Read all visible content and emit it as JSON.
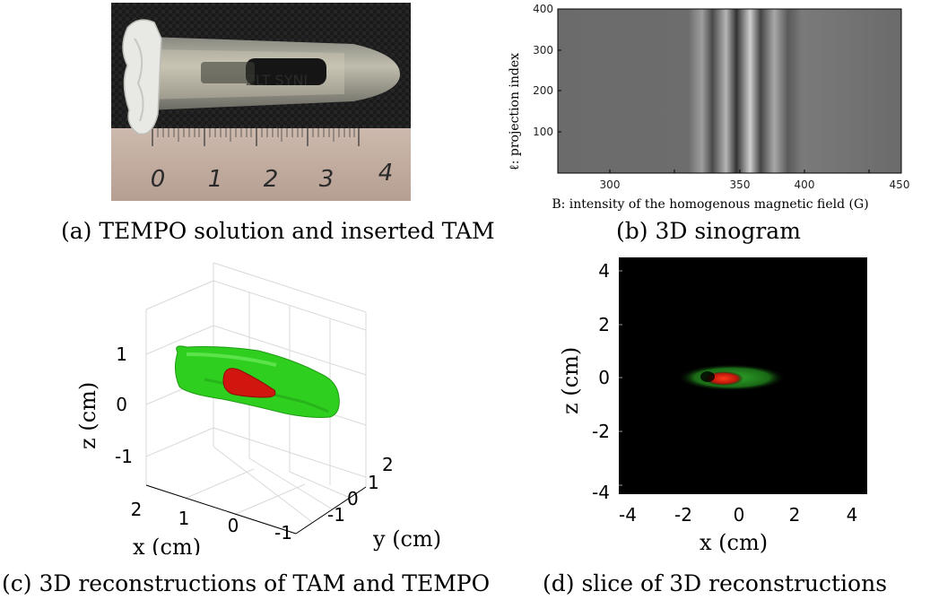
{
  "captions": {
    "a": "(a) TEMPO solution and inserted TAM",
    "b": "(b) 3D sinogram",
    "c": "(c) 3D reconstructions of TAM and TEMPO",
    "d": "(d) slice of 3D reconstructions"
  },
  "photo": {
    "ruler_labels": [
      "0",
      "1",
      "2",
      "3",
      "4"
    ],
    "tube_text": "ZLT SYNI"
  },
  "sinogram": {
    "ylabel": "ℓ: projection index",
    "xlabel": "B: intensity of the homogenous magnetic field (G)",
    "x_ticks": [
      "300",
      "350",
      "400",
      "450"
    ],
    "y_ticks": [
      "400",
      "300",
      "200",
      "100"
    ]
  },
  "recon3d": {
    "zlabel": "z (cm)",
    "xlabel": "x (cm)",
    "ylabel": "y (cm)",
    "z_ticks": [
      "1",
      "0",
      "-1"
    ],
    "x_ticks": [
      "2",
      "1",
      "0",
      "-1"
    ],
    "y_ticks": [
      "2",
      "1",
      "0",
      "-1"
    ],
    "colors": {
      "tempo": "#2fcf1f",
      "tam": "#d0160e"
    }
  },
  "slice": {
    "ylabel": "z (cm)",
    "xlabel": "x (cm)",
    "x_ticks": [
      "-4",
      "-2",
      "0",
      "2",
      "4"
    ],
    "y_ticks": [
      "4",
      "2",
      "0",
      "-2",
      "-4"
    ]
  }
}
